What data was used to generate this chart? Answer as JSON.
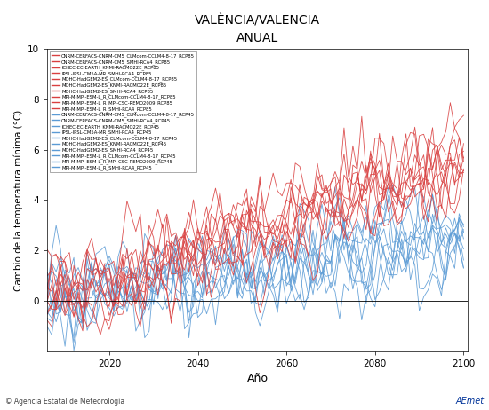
{
  "title": "VALÈNCIA/VALENCIA",
  "subtitle": "ANUAL",
  "ylabel": "Cambio de la temperatura mínima (°C)",
  "xlabel": "Año",
  "xlim": [
    2006,
    2101
  ],
  "ylim": [
    -2,
    10
  ],
  "yticks": [
    0,
    2,
    4,
    6,
    8,
    10
  ],
  "xticks": [
    2020,
    2040,
    2060,
    2080,
    2100
  ],
  "x_start": 2006,
  "x_end": 2100,
  "rcp85_color": "#D94040",
  "rcp45_color": "#5B9BD5",
  "n_rcp85": 10,
  "n_rcp45": 10,
  "legend_entries_rcp85": [
    "CNRM-CERFACS-CNRM-CM5_CLMcom-CCLM4-8-17_RCP85",
    "CNRM-CERFACS-CNRM-CM5_SMHI-RCA4_RCP85",
    "ICHEC-EC-EARTH_KNMI-RACMO22E_RCP85",
    "IPSL-IPSL-CM5A-MR_SMHI-RCA4_RCP85",
    "MOHC-HadGEM2-ES_CLMcom-CCLM4-8-17_RCP85",
    "MOHC-HadGEM2-ES_KNMI-RACMO22E_RCP85",
    "MOHC-HadGEM2-ES_SMHI-RCA4_RCP85",
    "MPI-M-MPI-ESM-L_R_CLMcom-CCLM4-8-17_RCP85",
    "MPI-M-MPI-ESM-L_R_MPI-CSC-REMO2009_RCP85",
    "MPI-M-MPI-ESM-L_R_SMHI-RCA4_RCP85"
  ],
  "legend_entries_rcp45": [
    "CNRM-CERFACS-CNRM-CM5_CLMcom-CCLM4-8-17_RCP45",
    "CNRM-CERFACS-CNRM-CM5_SMHI-RCA4_RCP45",
    "ICHEC-EC-EARTH_KNMI-RACMO22E_RCP45",
    "IPSL-IPSL-CM5A-MR_SMHI-RCA4_RCP45",
    "MOHC-HadGEM2-ES_CLMcom-CCLM4-8-17_RCP45",
    "MOHC-HadGEM2-ES_KNMI-RACMO22E_RCP45",
    "MOHC-HadGEM2-ES_SMHI-RCA4_RCP45",
    "MPI-M-MPI-ESM-L_R_CLMcom-CCLM4-8-17_RCP45",
    "MPI-M-MPI-ESM-L_R_MPI-CSC-REMO2009_RCP45",
    "MPI-M-MPI-ESM-L_R_SMHI-RCA4_RCP45"
  ],
  "background_color": "#FFFFFF",
  "rcp85_trend": 5.5,
  "rcp45_trend": 2.5,
  "noise_scale": 0.75,
  "ar1_coef": 0.6
}
